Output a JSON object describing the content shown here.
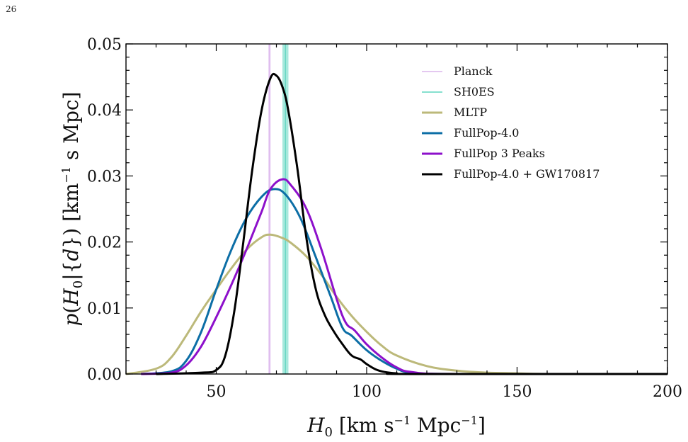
{
  "page_number": "26",
  "chart_data": {
    "type": "line",
    "title": "",
    "xlabel": "H₀ [km s⁻¹ Mpc⁻¹]",
    "ylabel": "p(H₀|{d}) [km⁻¹ s Mpc]",
    "xlim": [
      20,
      200
    ],
    "ylim": [
      0,
      0.05
    ],
    "x_ticks": [
      50,
      100,
      150,
      200
    ],
    "x_tick_labels": [
      "50",
      "100",
      "150",
      "200"
    ],
    "y_ticks": [
      0,
      0.01,
      0.02,
      0.03,
      0.04,
      0.05
    ],
    "y_tick_labels": [
      "0.00",
      "0.01",
      "0.02",
      "0.03",
      "0.04",
      "0.05"
    ],
    "grid": false,
    "legend_position": "top-right",
    "bands": [
      {
        "name": "Planck",
        "center": 67.7,
        "low": 67.3,
        "high": 68.1,
        "color": "#dcb6ec"
      },
      {
        "name": "SH0ES",
        "center": 73.0,
        "low": 72.0,
        "high": 74.0,
        "color": "#5fd6bf"
      }
    ],
    "series": [
      {
        "name": "MLTP",
        "color": "#bcb97a",
        "x": [
          20,
          30,
          35,
          40,
          45,
          50,
          55,
          60,
          65,
          68,
          72,
          75,
          80,
          85,
          90,
          95,
          100,
          105,
          110,
          120,
          130,
          140,
          150,
          160,
          180,
          200
        ],
        "y": [
          0,
          0.0008,
          0.0025,
          0.0058,
          0.0095,
          0.0128,
          0.016,
          0.0188,
          0.0207,
          0.0211,
          0.0206,
          0.0198,
          0.0178,
          0.015,
          0.0117,
          0.0088,
          0.0064,
          0.0043,
          0.0028,
          0.0012,
          0.0005,
          0.0002,
          0.0001,
          0,
          0,
          0
        ]
      },
      {
        "name": "FullPop-4.0",
        "color": "#0c6ea6",
        "x": [
          25,
          35,
          40,
          45,
          50,
          55,
          60,
          65,
          69,
          73,
          78,
          83,
          88,
          92,
          95,
          100,
          105,
          110,
          115,
          130,
          200
        ],
        "y": [
          0,
          0.0004,
          0.002,
          0.0064,
          0.0128,
          0.0188,
          0.0236,
          0.0268,
          0.028,
          0.0272,
          0.0236,
          0.0178,
          0.0118,
          0.007,
          0.0058,
          0.0036,
          0.002,
          0.0008,
          0.0002,
          0,
          0
        ]
      },
      {
        "name": "FullPop 3 Peaks",
        "color": "#8d10cb",
        "x": [
          25,
          35,
          40,
          45,
          50,
          55,
          60,
          65,
          68,
          72,
          75,
          80,
          85,
          90,
          93,
          96,
          100,
          105,
          110,
          115,
          130,
          200
        ],
        "y": [
          0,
          0.0002,
          0.0013,
          0.0042,
          0.0086,
          0.0135,
          0.0188,
          0.0245,
          0.028,
          0.0295,
          0.0285,
          0.025,
          0.0188,
          0.0114,
          0.0078,
          0.0066,
          0.0045,
          0.0025,
          0.001,
          0.0003,
          0,
          0
        ]
      },
      {
        "name": "FullPop-4.0 + GW170817",
        "color": "#000000",
        "x": [
          30,
          45,
          50,
          53,
          56,
          59,
          62,
          65,
          68,
          70,
          72,
          74,
          77,
          80,
          83,
          86,
          89,
          92,
          95,
          98,
          100,
          103,
          106,
          110,
          115,
          200
        ],
        "y": [
          0,
          0.0002,
          0.0006,
          0.0028,
          0.0095,
          0.02,
          0.031,
          0.0398,
          0.0448,
          0.0452,
          0.0435,
          0.0398,
          0.031,
          0.0205,
          0.013,
          0.009,
          0.0065,
          0.0045,
          0.0028,
          0.0022,
          0.0015,
          0.0007,
          0.0003,
          0.0001,
          0,
          0
        ]
      }
    ]
  },
  "legend": {
    "planck": "Planck",
    "shoes": "SH0ES",
    "mltp": "MLTP",
    "fullpop": "FullPop-4.0",
    "fullpop3": "FullPop 3 Peaks",
    "fullpop_gw": "FullPop-4.0 + GW170817"
  }
}
